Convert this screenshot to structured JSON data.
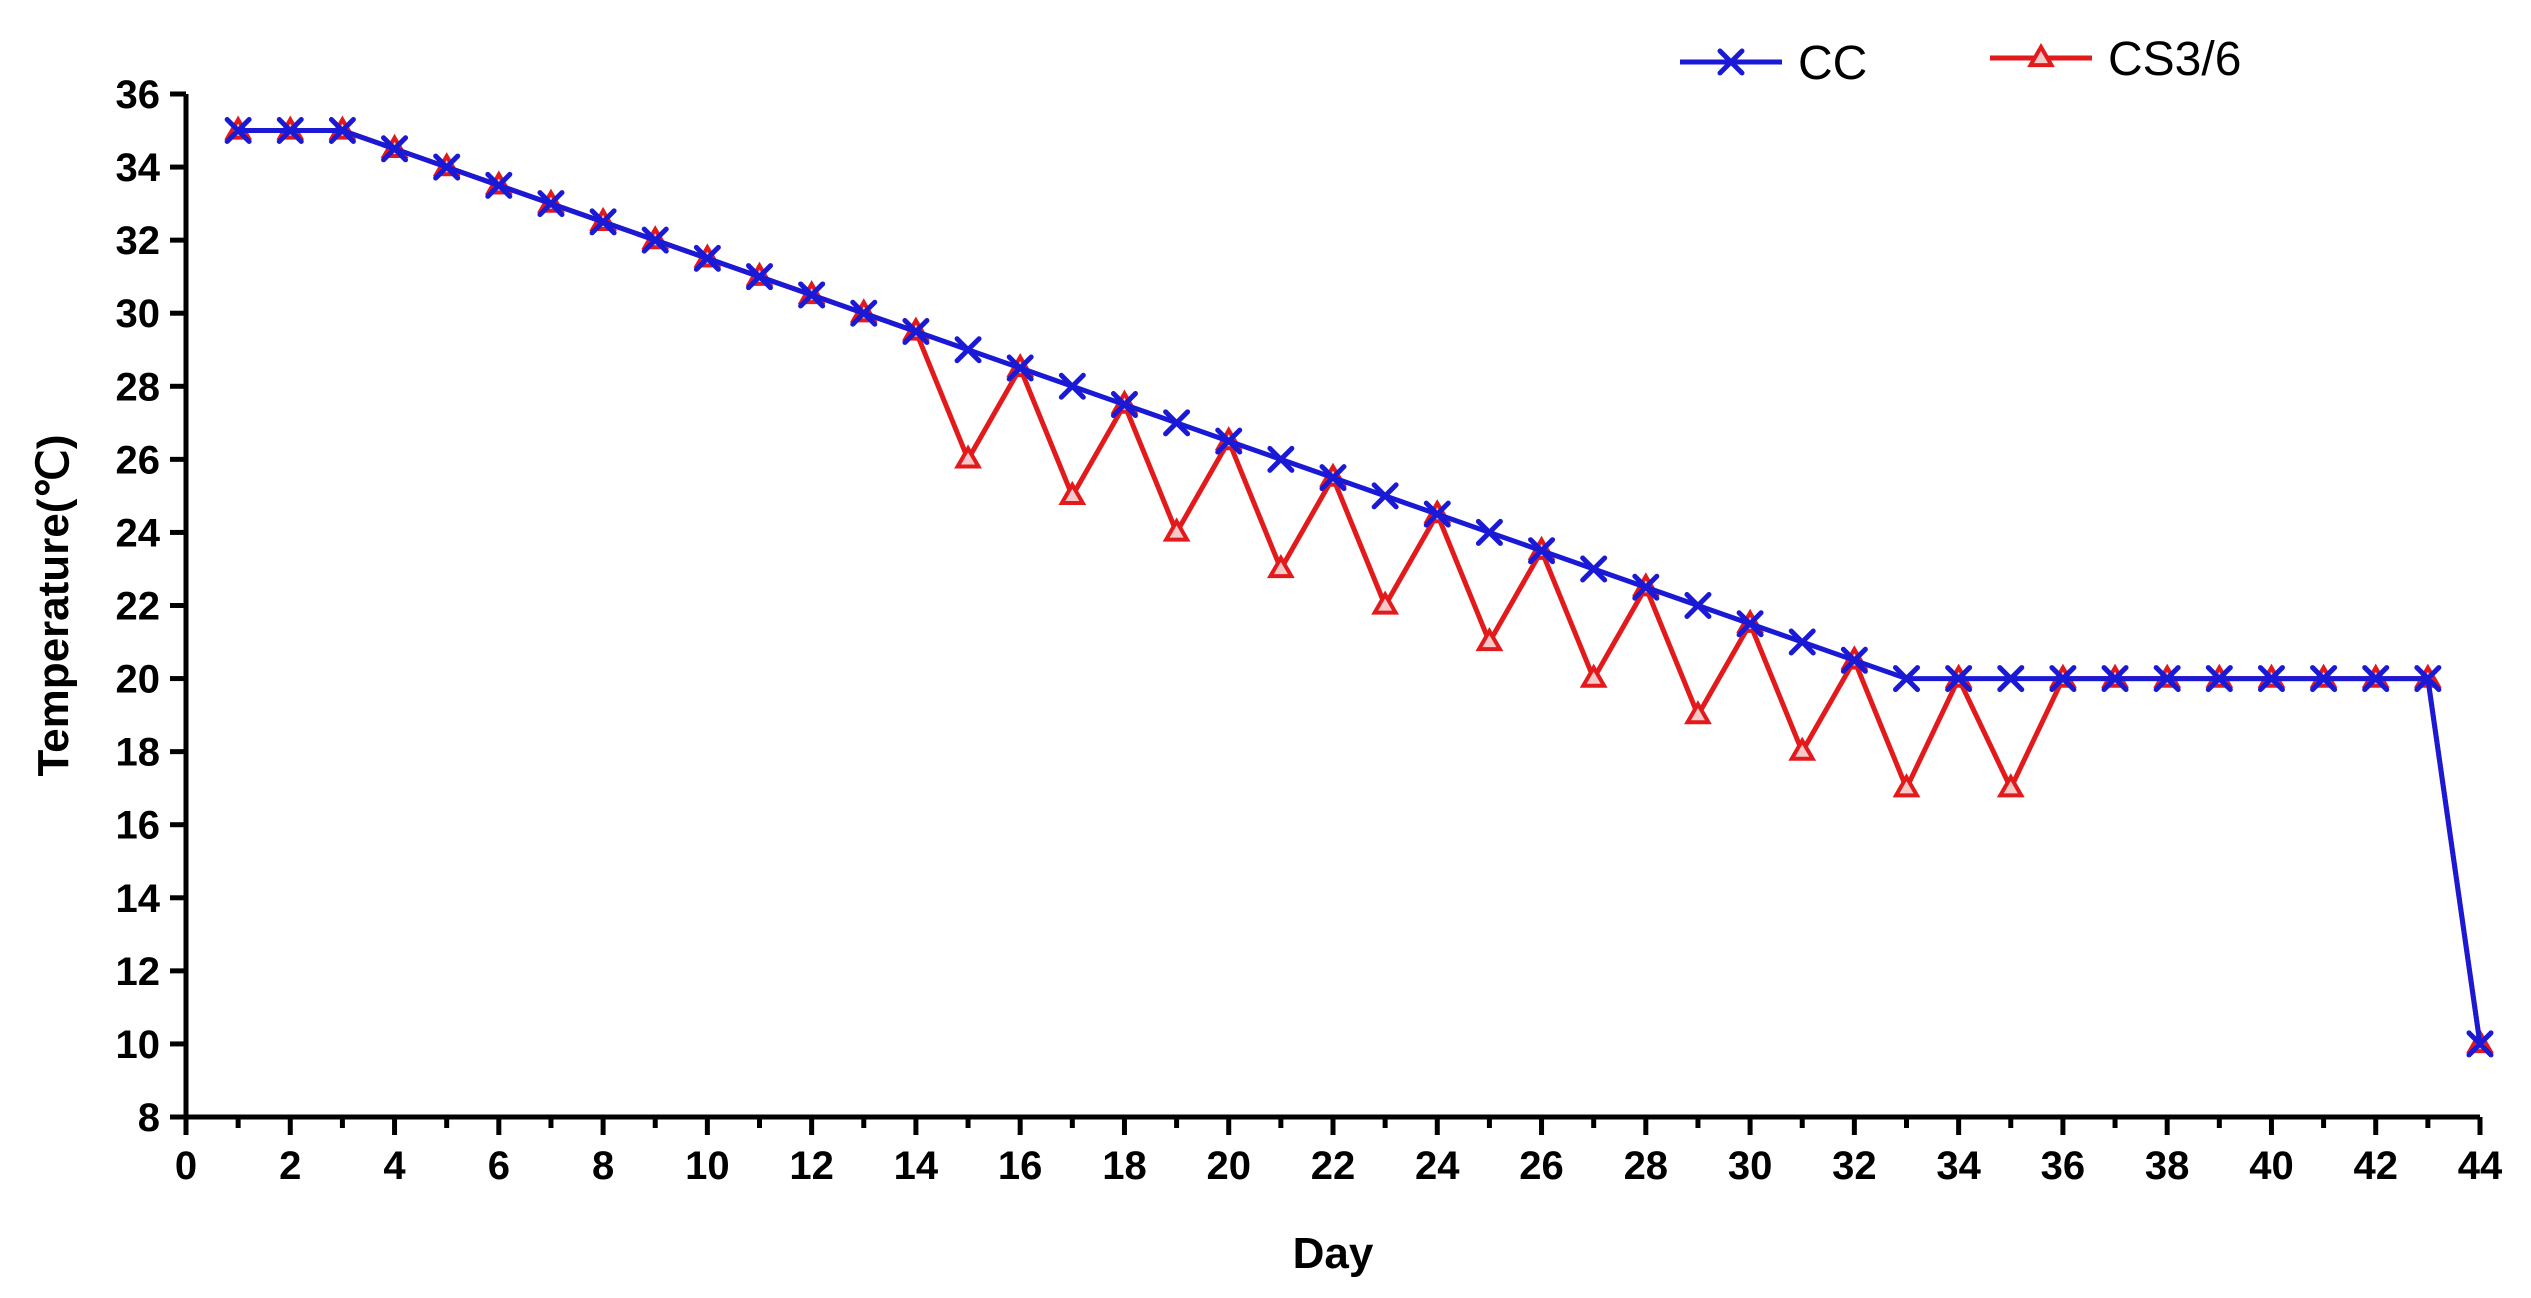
{
  "chart_data": {
    "type": "line",
    "xlabel": "Day",
    "ylabel": "Temperature(℃)",
    "xlim": [
      0,
      44
    ],
    "ylim": [
      8,
      36
    ],
    "x_ticks": [
      0,
      2,
      4,
      6,
      8,
      10,
      12,
      14,
      16,
      18,
      20,
      22,
      24,
      26,
      28,
      30,
      32,
      34,
      36,
      38,
      40,
      42,
      44
    ],
    "y_ticks": [
      8,
      10,
      12,
      14,
      16,
      18,
      20,
      22,
      24,
      26,
      28,
      30,
      32,
      34,
      36
    ],
    "grid": false,
    "legend_position": "top-right",
    "series": [
      {
        "name": "CS3/6",
        "color": "#e31a1c",
        "marker": "triangle",
        "x": [
          1,
          2,
          3,
          4,
          5,
          6,
          7,
          8,
          9,
          10,
          11,
          12,
          13,
          14,
          15,
          16,
          17,
          18,
          19,
          20,
          21,
          22,
          23,
          24,
          25,
          26,
          27,
          28,
          29,
          30,
          31,
          32,
          33,
          34,
          35,
          36,
          37,
          38,
          39,
          40,
          41,
          42,
          43,
          44
        ],
        "y": [
          35,
          35,
          35,
          34.5,
          34,
          33.5,
          33,
          32.5,
          32,
          31.5,
          31,
          30.5,
          30,
          29.5,
          26,
          28.5,
          25,
          27.5,
          24,
          26.5,
          23,
          25.5,
          22,
          24.5,
          21,
          23.5,
          20,
          22.5,
          19,
          21.5,
          18,
          20.5,
          17,
          20,
          17,
          20,
          20,
          20,
          20,
          20,
          20,
          20,
          20,
          10
        ]
      },
      {
        "name": "CC",
        "color": "#1a1ad6",
        "marker": "x",
        "x": [
          1,
          2,
          3,
          4,
          5,
          6,
          7,
          8,
          9,
          10,
          11,
          12,
          13,
          14,
          15,
          16,
          17,
          18,
          19,
          20,
          21,
          22,
          23,
          24,
          25,
          26,
          27,
          28,
          29,
          30,
          31,
          32,
          33,
          34,
          35,
          36,
          37,
          38,
          39,
          40,
          41,
          42,
          43,
          44
        ],
        "y": [
          35,
          35,
          35,
          34.5,
          34,
          33.5,
          33,
          32.5,
          32,
          31.5,
          31,
          30.5,
          30,
          29.5,
          29,
          28.5,
          28,
          27.5,
          27,
          26.5,
          26,
          25.5,
          25,
          24.5,
          24,
          23.5,
          23,
          22.5,
          22,
          21.5,
          21,
          20.5,
          20,
          20,
          20,
          20,
          20,
          20,
          20,
          20,
          20,
          20,
          20,
          10
        ]
      }
    ],
    "legend": [
      "CC",
      "CS3/6"
    ]
  }
}
